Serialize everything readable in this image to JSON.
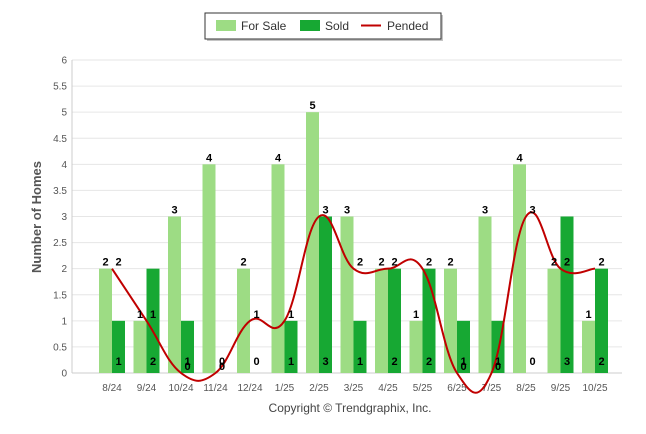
{
  "chart_data": {
    "type": "bar",
    "title": "",
    "xlabel": "",
    "ylabel": "Number of Homes",
    "ylim": [
      0,
      6
    ],
    "ytick_step": 0.5,
    "ytick_labels": [
      "0",
      "0.5",
      "1",
      "1.5",
      "2",
      "2.5",
      "3",
      "3.5",
      "4",
      "4.5",
      "5",
      "5.5",
      "6"
    ],
    "categories": [
      "8/24",
      "9/24",
      "10/24",
      "11/24",
      "12/24",
      "1/25",
      "2/25",
      "3/25",
      "4/25",
      "5/25",
      "6/25",
      "7/25",
      "8/25",
      "9/25",
      "10/25"
    ],
    "series": [
      {
        "name": "For Sale",
        "type": "bar",
        "color": "#9ddc84",
        "values": [
          2,
          1,
          3,
          4,
          2,
          4,
          5,
          3,
          2,
          1,
          2,
          3,
          4,
          2,
          1
        ]
      },
      {
        "name": "Sold",
        "type": "bar",
        "color": "#17a833",
        "values": [
          1,
          2,
          1,
          0,
          0,
          1,
          3,
          1,
          2,
          2,
          1,
          1,
          0,
          3,
          2
        ]
      },
      {
        "name": "Pended",
        "type": "line",
        "color": "#c00000",
        "values": [
          2,
          1,
          0,
          0,
          1,
          1,
          3,
          2,
          2,
          2,
          0,
          0,
          3,
          2,
          2
        ]
      }
    ],
    "legend_position": "top-center",
    "grid": true
  },
  "footer": {
    "copyright": "Copyright © Trendgraphix, Inc."
  }
}
